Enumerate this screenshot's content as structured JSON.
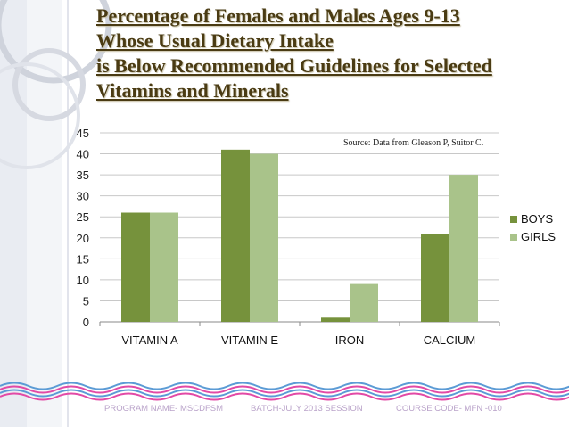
{
  "title_lines": [
    "Percentage of Females and Males Ages 9-13",
    "Whose Usual Dietary Intake",
    "is Below Recommended Guidelines for Selected",
    "Vitamins and Minerals"
  ],
  "chart_data": {
    "type": "bar",
    "categories": [
      "VITAMIN A",
      "VITAMIN E",
      "IRON",
      "CALCIUM"
    ],
    "series": [
      {
        "name": "BOYS",
        "values": [
          26,
          41,
          1,
          21
        ],
        "color": "#76923c"
      },
      {
        "name": "GIRLS",
        "values": [
          26,
          40,
          9,
          35
        ],
        "color": "#a9c38a"
      }
    ],
    "ylim": [
      0,
      45
    ],
    "yticks": [
      0,
      5,
      10,
      15,
      20,
      25,
      30,
      35,
      40,
      45
    ],
    "gridlines": true,
    "legend": "right",
    "annotation": "Source: Data from Gleason P, Suitor C.",
    "xlabel": "",
    "ylabel": ""
  },
  "footer": {
    "program": "PROGRAM NAME- MSCDFSM",
    "batch": "BATCH-JULY 2013 SESSION",
    "course": "COURSE CODE- MFN -010"
  },
  "colors": {
    "title": "#4a3b13",
    "footer_text": "#b9a2c9",
    "wave_blue": "#5b9bd5",
    "wave_pink": "#e24aa6"
  }
}
